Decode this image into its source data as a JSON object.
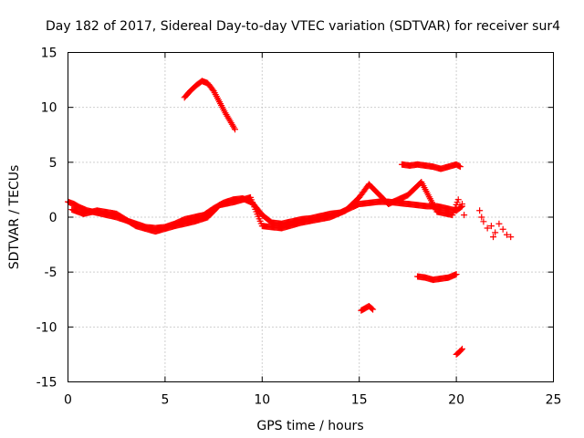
{
  "chart_data": {
    "type": "scatter",
    "title": "Day 182 of 2017, Sidereal Day-to-day VTEC variation (SDTVAR) for receiver sur4",
    "xlabel": "GPS time / hours",
    "ylabel": "SDTVAR / TECUs",
    "xlim": [
      0,
      25
    ],
    "ylim": [
      -15,
      15
    ],
    "xticks": [
      0,
      5,
      10,
      15,
      20,
      25
    ],
    "yticks": [
      -15,
      -10,
      -5,
      0,
      5,
      10,
      15
    ],
    "grid": true,
    "marker": "plus",
    "color": "#ff0000",
    "series": [
      {
        "name": "main-trace",
        "points": [
          [
            0.0,
            1.4
          ],
          [
            0.3,
            1.2
          ],
          [
            0.6,
            0.9
          ],
          [
            1.0,
            0.6
          ],
          [
            1.5,
            0.4
          ],
          [
            2.0,
            0.2
          ],
          [
            2.5,
            0.0
          ],
          [
            3.0,
            -0.3
          ],
          [
            3.5,
            -0.6
          ],
          [
            4.0,
            -0.9
          ],
          [
            4.5,
            -1.0
          ],
          [
            5.0,
            -0.9
          ],
          [
            5.5,
            -0.6
          ],
          [
            6.0,
            -0.2
          ],
          [
            6.5,
            0.0
          ],
          [
            7.0,
            0.2
          ],
          [
            7.5,
            0.8
          ],
          [
            8.0,
            1.3
          ],
          [
            8.5,
            1.6
          ],
          [
            9.0,
            1.7
          ],
          [
            9.5,
            1.3
          ],
          [
            10.0,
            0.2
          ],
          [
            10.5,
            -0.5
          ],
          [
            11.0,
            -0.6
          ],
          [
            11.5,
            -0.4
          ],
          [
            12.0,
            -0.2
          ],
          [
            12.5,
            -0.1
          ],
          [
            13.0,
            0.1
          ],
          [
            13.5,
            0.3
          ],
          [
            14.0,
            0.4
          ],
          [
            14.5,
            0.8
          ],
          [
            15.0,
            1.2
          ],
          [
            15.5,
            1.3
          ],
          [
            16.0,
            1.4
          ],
          [
            16.5,
            1.4
          ],
          [
            17.0,
            1.3
          ],
          [
            17.5,
            1.2
          ],
          [
            18.0,
            1.1
          ],
          [
            18.5,
            1.0
          ],
          [
            19.0,
            1.0
          ],
          [
            19.5,
            0.8
          ],
          [
            20.0,
            0.6
          ],
          [
            20.3,
            1.0
          ]
        ]
      },
      {
        "name": "secondary-trace",
        "points": [
          [
            0.2,
            0.7
          ],
          [
            0.8,
            0.3
          ],
          [
            1.5,
            0.6
          ],
          [
            2.5,
            0.3
          ],
          [
            3.5,
            -0.8
          ],
          [
            4.5,
            -1.3
          ],
          [
            5.5,
            -0.8
          ],
          [
            6.5,
            -0.4
          ],
          [
            7.2,
            0.0
          ],
          [
            7.8,
            1.1
          ],
          [
            8.6,
            1.4
          ],
          [
            9.4,
            1.8
          ],
          [
            10.0,
            -0.8
          ],
          [
            11.0,
            -1.0
          ],
          [
            12.0,
            -0.5
          ],
          [
            13.5,
            0.0
          ],
          [
            14.3,
            0.6
          ],
          [
            15.0,
            1.8
          ],
          [
            15.5,
            3.0
          ],
          [
            16.5,
            1.2
          ],
          [
            17.5,
            2.0
          ],
          [
            18.2,
            3.2
          ],
          [
            19.0,
            0.5
          ],
          [
            19.8,
            0.2
          ],
          [
            20.1,
            1.6
          ]
        ]
      },
      {
        "name": "upper-arc",
        "points": [
          [
            6.0,
            10.9
          ],
          [
            6.3,
            11.5
          ],
          [
            6.6,
            12.0
          ],
          [
            6.9,
            12.4
          ],
          [
            7.2,
            12.2
          ],
          [
            7.5,
            11.5
          ],
          [
            7.8,
            10.5
          ],
          [
            8.1,
            9.5
          ],
          [
            8.4,
            8.6
          ],
          [
            8.6,
            8.0
          ]
        ]
      },
      {
        "name": "plus-five-segment",
        "points": [
          [
            17.2,
            4.8
          ],
          [
            17.6,
            4.7
          ],
          [
            18.0,
            4.8
          ],
          [
            18.4,
            4.7
          ],
          [
            18.8,
            4.6
          ],
          [
            19.2,
            4.4
          ],
          [
            19.6,
            4.6
          ],
          [
            20.0,
            4.8
          ],
          [
            20.2,
            4.6
          ]
        ]
      },
      {
        "name": "minus-five-segment",
        "points": [
          [
            18.0,
            -5.4
          ],
          [
            18.4,
            -5.5
          ],
          [
            18.8,
            -5.7
          ],
          [
            19.2,
            -5.6
          ],
          [
            19.6,
            -5.5
          ],
          [
            20.0,
            -5.2
          ]
        ]
      },
      {
        "name": "minus-eight-segment",
        "points": [
          [
            15.1,
            -8.5
          ],
          [
            15.3,
            -8.3
          ],
          [
            15.5,
            -8.1
          ],
          [
            15.7,
            -8.4
          ]
        ]
      },
      {
        "name": "minus-twelve-segment",
        "points": [
          [
            20.0,
            -12.5
          ],
          [
            20.2,
            -12.2
          ],
          [
            20.3,
            -12.0
          ]
        ]
      },
      {
        "name": "late-scatter",
        "points": [
          [
            20.3,
            1.2
          ],
          [
            20.4,
            0.2
          ],
          [
            21.2,
            0.6
          ],
          [
            21.3,
            0.0
          ],
          [
            21.4,
            -0.4
          ],
          [
            21.6,
            -1.0
          ],
          [
            21.8,
            -0.8
          ],
          [
            21.9,
            -1.8
          ],
          [
            22.0,
            -1.4
          ],
          [
            22.2,
            -0.6
          ],
          [
            22.4,
            -1.1
          ],
          [
            22.6,
            -1.6
          ],
          [
            22.8,
            -1.8
          ]
        ]
      }
    ]
  }
}
